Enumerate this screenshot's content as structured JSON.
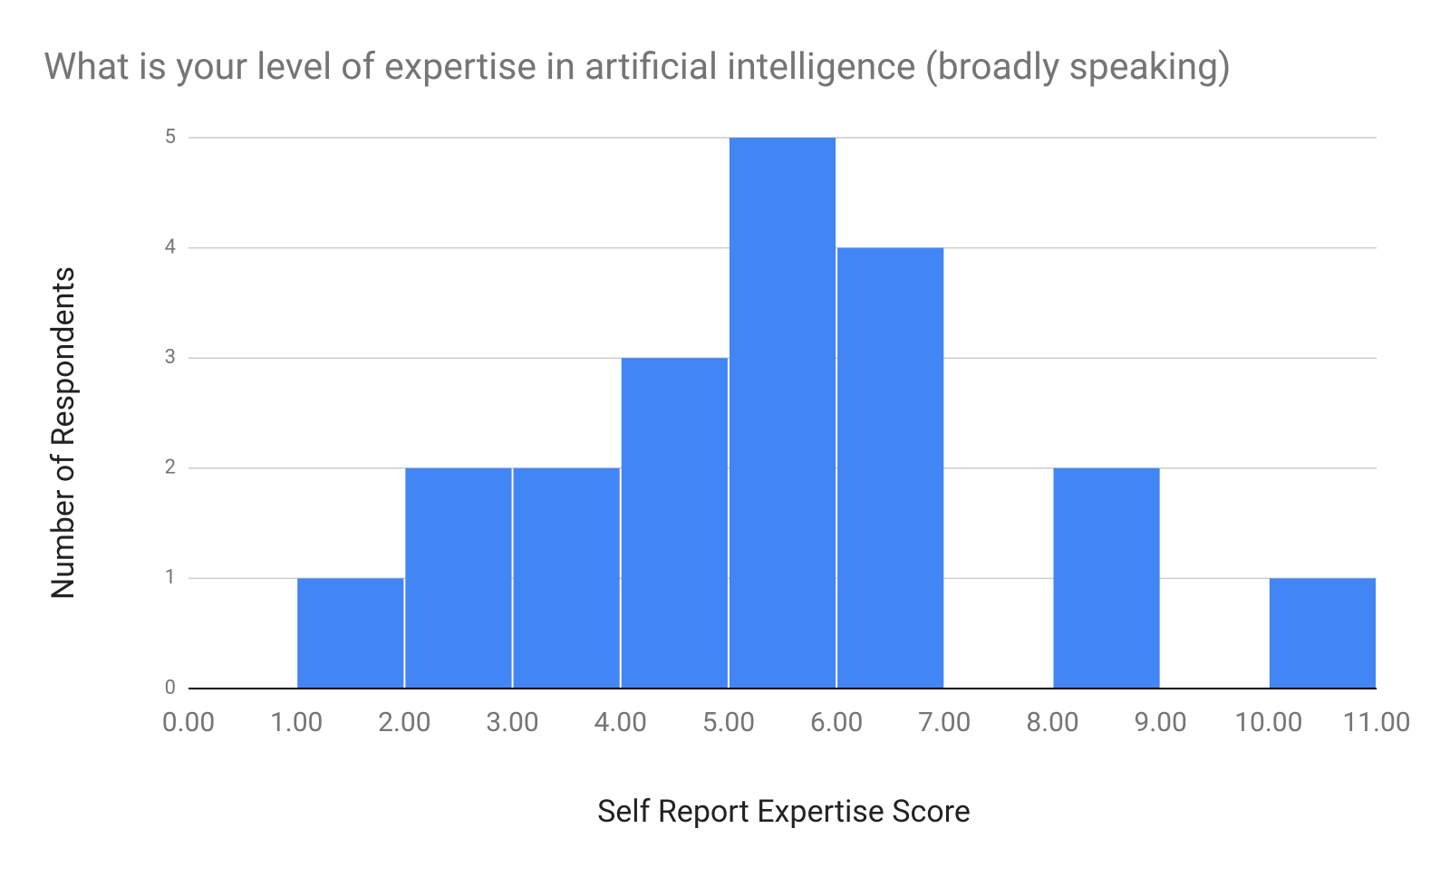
{
  "chart_data": {
    "type": "histogram",
    "title": "What is your level of expertise in artificial intelligence (broadly speaking)",
    "x_label": "Self Report Expertise Score",
    "y_label": "Number of Respondents",
    "bins": [
      0,
      1,
      2,
      3,
      4,
      5,
      6,
      7,
      8,
      9,
      10,
      11
    ],
    "values": [
      0,
      1,
      2,
      2,
      3,
      5,
      4,
      0,
      2,
      0,
      1
    ],
    "color": "#4285f4",
    "xlim": [
      0,
      11
    ],
    "xticks": [
      {
        "value": 0,
        "label": "0.00"
      },
      {
        "value": 1,
        "label": "1.00"
      },
      {
        "value": 2,
        "label": "2.00"
      },
      {
        "value": 3,
        "label": "3.00"
      },
      {
        "value": 4,
        "label": "4.00"
      },
      {
        "value": 5,
        "label": "5.00"
      },
      {
        "value": 6,
        "label": "6.00"
      },
      {
        "value": 7,
        "label": "7.00"
      },
      {
        "value": 8,
        "label": "8.00"
      },
      {
        "value": 9,
        "label": "9.00"
      },
      {
        "value": 10,
        "label": "10.00"
      },
      {
        "value": 11,
        "label": "11.00"
      }
    ],
    "ylim": [
      0,
      5
    ],
    "yticks": [
      0,
      1,
      2,
      3,
      4,
      5
    ],
    "grid": true
  }
}
